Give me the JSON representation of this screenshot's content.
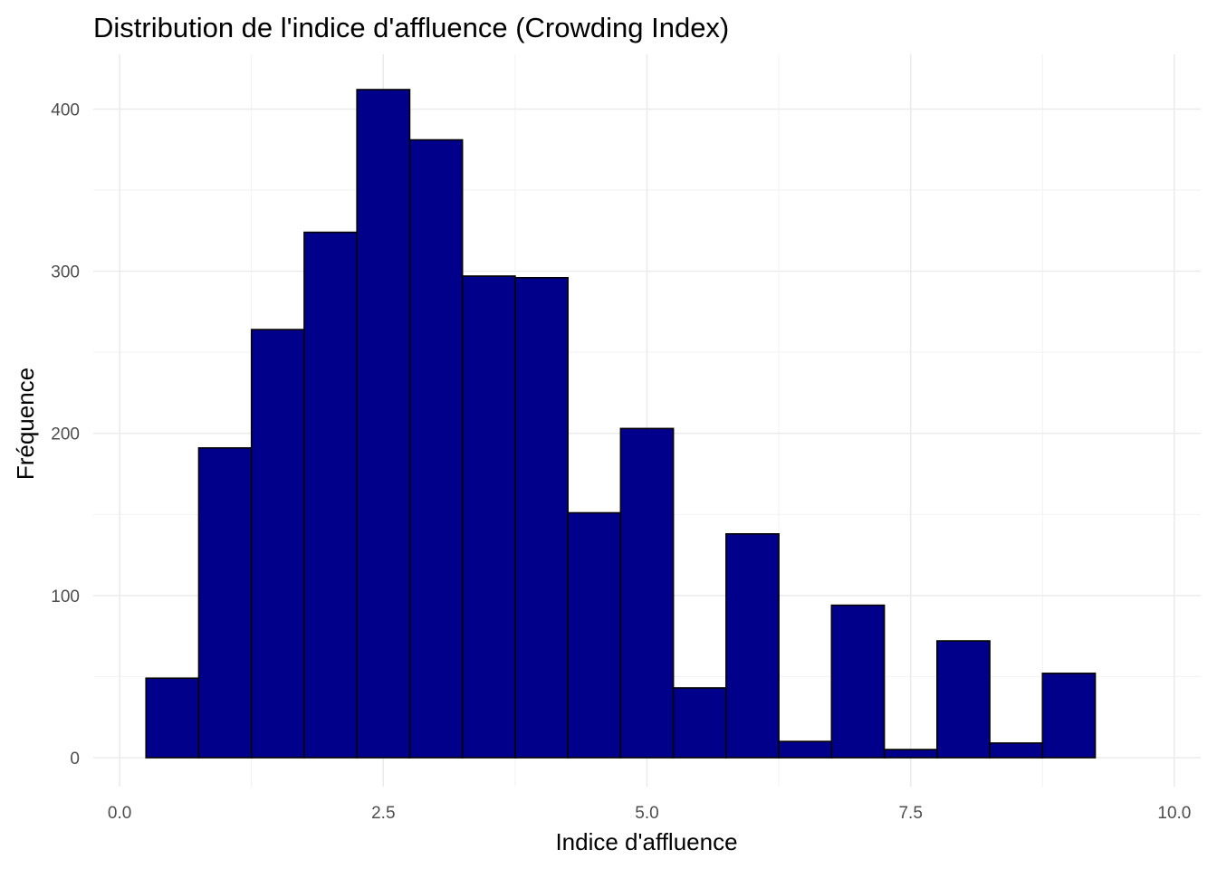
{
  "chart_data": {
    "type": "bar",
    "title": "Distribution de l'indice d'affluence (Crowding Index)",
    "xlabel": "Indice d'affluence",
    "ylabel": "Fréquence",
    "xlim": [
      -0.25,
      10.25
    ],
    "ylim": [
      0,
      412
    ],
    "x_ticks": [
      0,
      2.5,
      5,
      7.5,
      10
    ],
    "x_tick_labels": [
      "0.0",
      "2.5",
      "5.0",
      "7.5",
      "10.0"
    ],
    "y_ticks": [
      0,
      100,
      200,
      300,
      400
    ],
    "y_tick_labels": [
      "0",
      "100",
      "200",
      "300",
      "400"
    ],
    "grid": true,
    "bin_width": 0.5,
    "bins": [
      {
        "x0": 0.25,
        "x1": 0.75,
        "count": 49
      },
      {
        "x0": 0.75,
        "x1": 1.25,
        "count": 191
      },
      {
        "x0": 1.25,
        "x1": 1.75,
        "count": 264
      },
      {
        "x0": 1.75,
        "x1": 2.25,
        "count": 324
      },
      {
        "x0": 2.25,
        "x1": 2.75,
        "count": 412
      },
      {
        "x0": 2.75,
        "x1": 3.25,
        "count": 381
      },
      {
        "x0": 3.25,
        "x1": 3.75,
        "count": 297
      },
      {
        "x0": 3.75,
        "x1": 4.25,
        "count": 296
      },
      {
        "x0": 4.25,
        "x1": 4.75,
        "count": 151
      },
      {
        "x0": 4.75,
        "x1": 5.25,
        "count": 203
      },
      {
        "x0": 5.25,
        "x1": 5.75,
        "count": 43
      },
      {
        "x0": 5.75,
        "x1": 6.25,
        "count": 138
      },
      {
        "x0": 6.25,
        "x1": 6.75,
        "count": 10
      },
      {
        "x0": 6.75,
        "x1": 7.25,
        "count": 94
      },
      {
        "x0": 7.25,
        "x1": 7.75,
        "count": 5
      },
      {
        "x0": 7.75,
        "x1": 8.25,
        "count": 72
      },
      {
        "x0": 8.25,
        "x1": 8.75,
        "count": 9
      },
      {
        "x0": 8.75,
        "x1": 9.25,
        "count": 52
      },
      {
        "x0": 9.25,
        "x1": 9.75,
        "count": 0
      }
    ],
    "bar_fill": "#00008b",
    "bar_outline": "#000000"
  }
}
